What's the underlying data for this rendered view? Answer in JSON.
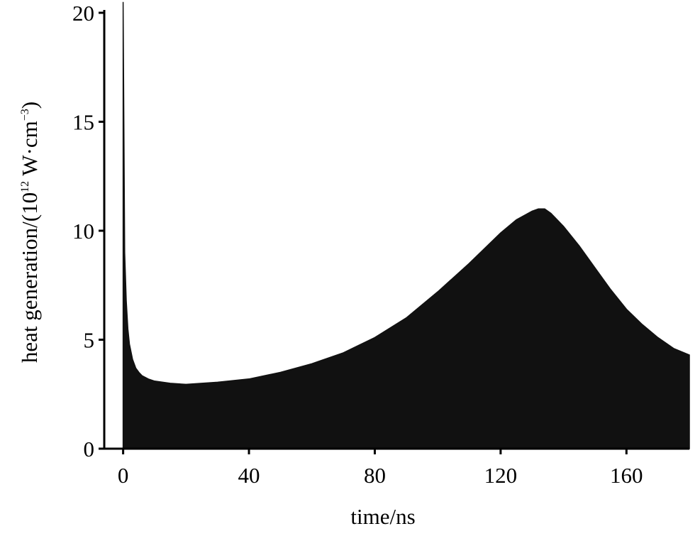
{
  "chart_data": {
    "type": "area",
    "title": "",
    "xlabel": "time/ns",
    "ylabel": {
      "prefix": "heat generation/(10",
      "exp1": "12",
      "middle": " W·cm",
      "exp2": "−3",
      "suffix": ")"
    },
    "xlim": [
      -6,
      180
    ],
    "ylim": [
      0,
      20
    ],
    "x_ticks": [
      0,
      40,
      80,
      120,
      160
    ],
    "y_ticks": [
      0,
      5,
      10,
      15,
      20
    ],
    "fill_color": "#111111",
    "series": [
      {
        "x": [
          0,
          0.5,
          1,
          1.5,
          2,
          3,
          4,
          5,
          6,
          8,
          10,
          15,
          20,
          25,
          30,
          40,
          50,
          60,
          70,
          80,
          90,
          100,
          110,
          120,
          125,
          130,
          132,
          134,
          136,
          140,
          145,
          150,
          155,
          160,
          165,
          170,
          175,
          180
        ],
        "y": [
          20.5,
          9.0,
          6.8,
          5.5,
          4.8,
          4.1,
          3.7,
          3.5,
          3.35,
          3.2,
          3.1,
          3.0,
          2.95,
          3.0,
          3.05,
          3.2,
          3.5,
          3.9,
          4.4,
          5.1,
          6.0,
          7.2,
          8.5,
          9.9,
          10.5,
          10.9,
          11.0,
          11.0,
          10.8,
          10.2,
          9.3,
          8.3,
          7.3,
          6.4,
          5.7,
          5.1,
          4.6,
          4.3
        ]
      }
    ]
  }
}
